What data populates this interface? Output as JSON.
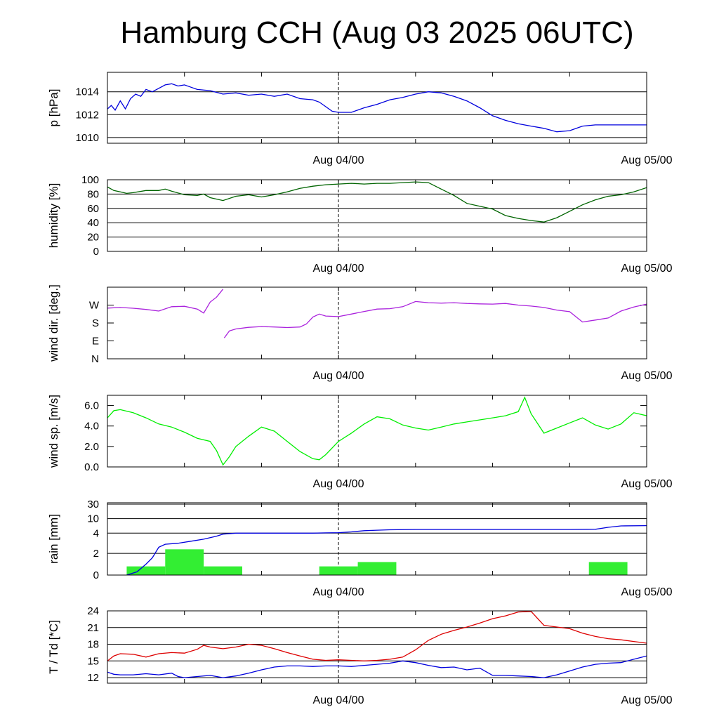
{
  "chart_data": {
    "title": "Hamburg CCH (Aug 03 2025 06UTC)",
    "type": "line",
    "x_tick_labels": [
      "Aug 04/00",
      "Aug 05/00"
    ],
    "x_range_hours": [
      0,
      42
    ],
    "panels": [
      {
        "id": "pressure",
        "ylabel": "p [hPa]",
        "ylim": [
          1009.5,
          1015.7
        ],
        "yticks": [
          1010,
          1012,
          1014
        ],
        "ytick_labels": [
          "1010",
          "1012",
          "1014"
        ],
        "grid": true,
        "series": [
          {
            "kind": "line",
            "color": "#0000dd",
            "x": [
              0,
              0.3,
              0.6,
              1,
              1.4,
              1.8,
              2.2,
              2.6,
              3,
              3.5,
              4,
              4.5,
              5,
              5.5,
              6,
              6.5,
              7,
              8,
              9,
              10,
              11,
              12,
              13,
              14,
              15,
              16,
              16.5,
              17,
              17.5,
              18,
              19,
              20,
              21,
              22,
              23,
              24,
              25,
              26,
              27,
              28,
              29,
              30,
              31,
              32,
              33,
              34,
              35,
              36,
              37,
              38,
              39,
              40,
              41,
              42
            ],
            "y": [
              1012.5,
              1012.8,
              1012.4,
              1013.2,
              1012.5,
              1013.4,
              1013.8,
              1013.6,
              1014.2,
              1014.0,
              1014.3,
              1014.6,
              1014.7,
              1014.5,
              1014.6,
              1014.4,
              1014.2,
              1014.1,
              1013.8,
              1013.9,
              1013.7,
              1013.8,
              1013.6,
              1013.8,
              1013.4,
              1013.3,
              1013.1,
              1012.7,
              1012.3,
              1012.2,
              1012.2,
              1012.6,
              1012.9,
              1013.3,
              1013.5,
              1013.8,
              1014.0,
              1013.9,
              1013.6,
              1013.2,
              1012.6,
              1011.9,
              1011.5,
              1011.2,
              1011.0,
              1010.8,
              1010.5,
              1010.6,
              1011.0,
              1011.1,
              1011.1,
              1011.1,
              1011.1,
              1011.1
            ]
          }
        ]
      },
      {
        "id": "humidity",
        "ylabel": "humidity [%]",
        "ylim": [
          0,
          100
        ],
        "yticks": [
          0,
          20,
          40,
          60,
          80,
          100
        ],
        "ytick_labels": [
          "0",
          "20",
          "40",
          "60",
          "80",
          "100"
        ],
        "grid": true,
        "series": [
          {
            "kind": "line",
            "color": "#006400",
            "x": [
              0,
              0.5,
              1,
              1.5,
              2,
              3,
              4,
              4.5,
              5,
              6,
              7,
              7.5,
              8,
              9,
              10,
              11,
              12,
              13,
              14,
              15,
              16,
              17,
              18,
              19,
              20,
              21,
              22,
              23,
              24,
              25,
              26,
              27,
              28,
              29,
              30,
              31,
              32,
              33,
              34,
              35,
              36,
              37,
              38,
              39,
              40,
              41,
              42
            ],
            "y": [
              90,
              85,
              83,
              81,
              82,
              85,
              85,
              87,
              84,
              79,
              78,
              80,
              75,
              71,
              77,
              79,
              76,
              79,
              83,
              88,
              91,
              93,
              94,
              95,
              94,
              95,
              95,
              96,
              97,
              96,
              87,
              78,
              67,
              63,
              59,
              50,
              46,
              43,
              41,
              47,
              56,
              65,
              72,
              77,
              79,
              83,
              89
            ]
          }
        ]
      },
      {
        "id": "wind_dir",
        "ylabel": "wind dir. [deg.]",
        "ylim": [
          0,
          360
        ],
        "yticks": [
          0,
          90,
          180,
          270
        ],
        "ytick_labels": [
          "N",
          "E",
          "S",
          "W"
        ],
        "grid": false,
        "series": [
          {
            "kind": "line",
            "color": "#aa22dd",
            "x": [
              0,
              1,
              2,
              3,
              4,
              5,
              6,
              7,
              7.5,
              8,
              8.5,
              9
            ],
            "y": [
              255,
              258,
              254,
              248,
              240,
              262,
              264,
              250,
              230,
              285,
              310,
              350
            ]
          },
          {
            "kind": "line",
            "color": "#aa22dd",
            "x": [
              9.1,
              9.5,
              10,
              11,
              12,
              13,
              14,
              15,
              15.5,
              16,
              16.5,
              17,
              18,
              19,
              20,
              21,
              22,
              23,
              24,
              25,
              26,
              27,
              28,
              29,
              30,
              31,
              32,
              33,
              34,
              35,
              36,
              37,
              38,
              39,
              40,
              41,
              42
            ],
            "y": [
              105,
              140,
              150,
              158,
              162,
              160,
              157,
              160,
              175,
              210,
              225,
              215,
              212,
              225,
              238,
              250,
              252,
              262,
              288,
              282,
              280,
              282,
              278,
              276,
              275,
              278,
              270,
              265,
              258,
              245,
              237,
              185,
              195,
              205,
              240,
              260,
              275
            ]
          }
        ]
      },
      {
        "id": "wind_speed",
        "ylabel": "wind sp. [m/s]",
        "ylim": [
          0,
          7
        ],
        "yticks": [
          0,
          2,
          4,
          6
        ],
        "ytick_labels": [
          "0.0",
          "2.0",
          "4.0",
          "6.0"
        ],
        "grid": false,
        "series": [
          {
            "kind": "line",
            "color": "#00ee00",
            "x": [
              0,
              0.5,
              1,
              2,
              3,
              4,
              5,
              6,
              7,
              8,
              8.5,
              9,
              9.5,
              10,
              11,
              12,
              13,
              14,
              15,
              16,
              16.5,
              17,
              18,
              19,
              20,
              21,
              22,
              23,
              24,
              25,
              26,
              27,
              28,
              29,
              30,
              31,
              32,
              32.5,
              33,
              34,
              35,
              36,
              37,
              38,
              39,
              40,
              41,
              42
            ],
            "y": [
              4.8,
              5.5,
              5.6,
              5.3,
              4.8,
              4.2,
              3.9,
              3.4,
              2.8,
              2.5,
              1.6,
              0.2,
              1.0,
              2.0,
              3.0,
              3.9,
              3.5,
              2.5,
              1.5,
              0.8,
              0.7,
              1.2,
              2.5,
              3.3,
              4.2,
              4.9,
              4.7,
              4.1,
              3.8,
              3.6,
              3.9,
              4.2,
              4.4,
              4.6,
              4.8,
              5.0,
              5.4,
              6.8,
              5.2,
              3.3,
              3.8,
              4.3,
              4.8,
              4.1,
              3.7,
              4.2,
              5.3,
              5.0
            ]
          }
        ]
      },
      {
        "id": "rain",
        "ylabel": "rain [mm]",
        "scale": "nonlinear",
        "yticks": [
          0,
          2,
          4,
          10,
          30
        ],
        "ytick_labels": [
          "0",
          "2",
          "4",
          "10",
          "30"
        ],
        "grid": true,
        "bars": {
          "color": "#33ee33",
          "width_hours": 3,
          "x_start": [
            1.5,
            4.5,
            7.5,
            16.5,
            19.5,
            37.5
          ],
          "values": [
            0.8,
            2.4,
            0.8,
            0.8,
            1.2,
            1.2
          ]
        },
        "cumulative_series": {
          "kind": "line",
          "color": "#0000dd",
          "x": [
            1.5,
            2.3,
            3.0,
            3.5,
            4.0,
            4.5,
            5.5,
            6.5,
            7.5,
            8.5,
            9.0,
            10.0,
            12.0,
            14.0,
            16.0,
            17.0,
            18.0,
            19.0,
            20.0,
            21.0,
            22.0,
            24.0,
            28.0,
            32.0,
            36.0,
            38.0,
            39.0,
            40.0,
            42.0
          ],
          "y": [
            0,
            0.3,
            1.0,
            1.6,
            2.6,
            2.9,
            3.0,
            3.2,
            3.4,
            3.7,
            3.9,
            4.0,
            4.0,
            4.0,
            4.0,
            4.1,
            4.2,
            4.5,
            5.0,
            5.2,
            5.4,
            5.5,
            5.5,
            5.5,
            5.5,
            5.6,
            6.4,
            7.0,
            7.1
          ]
        }
      },
      {
        "id": "temperature",
        "ylabel": "T / Td [*C]",
        "ylim": [
          11,
          24
        ],
        "yticks": [
          12,
          15,
          18,
          21,
          24
        ],
        "ytick_labels": [
          "12",
          "15",
          "18",
          "21",
          "24"
        ],
        "grid": true,
        "series": [
          {
            "kind": "line",
            "name": "T",
            "color": "#dd0000",
            "x": [
              0,
              0.5,
              1,
              2,
              3,
              4,
              5,
              6,
              7,
              7.5,
              8,
              9,
              10,
              11,
              12,
              13,
              14,
              15,
              16,
              17,
              18,
              19,
              20,
              21,
              22,
              23,
              24,
              25,
              26,
              27,
              28,
              29,
              30,
              31,
              32,
              33,
              34,
              35,
              36,
              37,
              38,
              39,
              40,
              41,
              42
            ],
            "y": [
              15.0,
              15.9,
              16.3,
              16.2,
              15.7,
              16.3,
              16.5,
              16.4,
              17.1,
              17.8,
              17.5,
              17.2,
              17.5,
              18.0,
              17.8,
              17.2,
              16.5,
              15.9,
              15.3,
              15.1,
              15.2,
              15.1,
              15.0,
              15.1,
              15.3,
              15.7,
              17.0,
              18.7,
              19.8,
              20.5,
              21.1,
              21.8,
              22.6,
              23.1,
              23.8,
              23.9,
              21.4,
              21.1,
              20.8,
              20.0,
              19.4,
              19.0,
              18.8,
              18.5,
              18.2
            ]
          },
          {
            "kind": "line",
            "name": "Td",
            "color": "#0000dd",
            "x": [
              0,
              0.5,
              1,
              2,
              3,
              4,
              5,
              5.5,
              6,
              7,
              8,
              9,
              10,
              11,
              12,
              13,
              14,
              15,
              16,
              17,
              18,
              19,
              20,
              21,
              22,
              23,
              24,
              25,
              26,
              27,
              28,
              29,
              30,
              31,
              32,
              33,
              34,
              35,
              36,
              37,
              38,
              39,
              40,
              41,
              42
            ],
            "y": [
              13.0,
              12.6,
              12.5,
              12.5,
              12.7,
              12.5,
              12.8,
              12.2,
              12.0,
              12.2,
              12.4,
              12.0,
              12.3,
              12.8,
              13.4,
              13.9,
              14.1,
              14.1,
              14.0,
              14.1,
              14.1,
              14.0,
              14.2,
              14.4,
              14.6,
              15.0,
              14.7,
              14.2,
              13.8,
              13.9,
              13.4,
              13.7,
              12.4,
              12.4,
              12.3,
              12.2,
              12.0,
              12.5,
              13.2,
              13.9,
              14.4,
              14.6,
              14.7,
              15.3,
              15.9
            ]
          }
        ]
      }
    ]
  }
}
